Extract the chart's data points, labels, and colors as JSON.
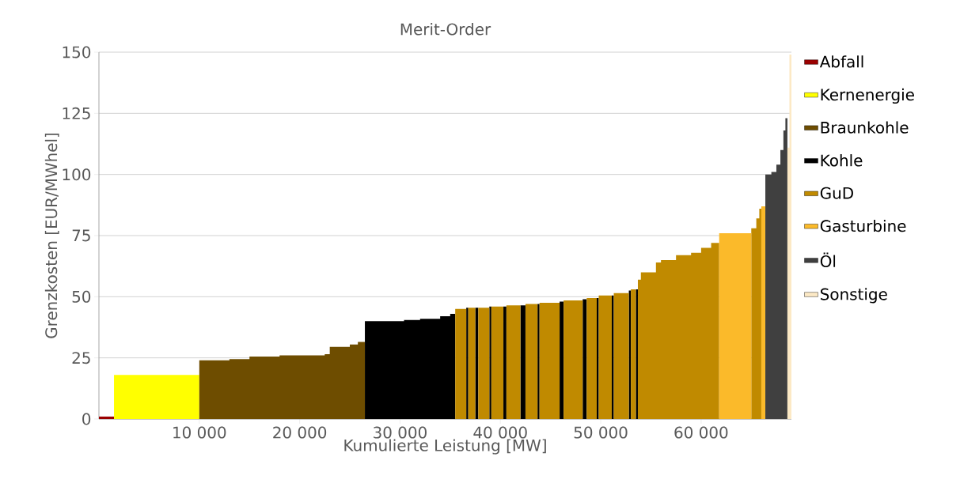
{
  "chart_data": {
    "type": "area",
    "title": "Merit-Order",
    "xlabel": "Kumulierte Leistung [MW]",
    "ylabel": "Grenzkosten [EUR/MWhel]",
    "xlim": [
      0,
      69000
    ],
    "ylim": [
      0,
      150
    ],
    "xticks": [
      {
        "value": 10000,
        "label": "10 000"
      },
      {
        "value": 20000,
        "label": "20 000"
      },
      {
        "value": 30000,
        "label": "30 000"
      },
      {
        "value": 40000,
        "label": "40 000"
      },
      {
        "value": 50000,
        "label": "50 000"
      },
      {
        "value": 60000,
        "label": "60 000"
      }
    ],
    "yticks": [
      0,
      25,
      50,
      75,
      100,
      125,
      150
    ],
    "grid": "y",
    "legend": "right",
    "series": [
      {
        "name": "Abfall",
        "color": "#9b0000",
        "x": [
          0,
          1500
        ],
        "values": [
          1,
          1
        ]
      },
      {
        "name": "Kernenergie",
        "color": "#ffff00",
        "x": [
          1500,
          10000
        ],
        "values": [
          18,
          18
        ]
      },
      {
        "name": "Braunkohle",
        "color": "#6e4d00",
        "x": [
          10000,
          13000,
          13000,
          15000,
          15000,
          18000,
          18000,
          22500,
          22500,
          23000,
          23000,
          25000,
          25000,
          25800,
          25800,
          26500
        ],
        "values": [
          24,
          24,
          24.5,
          24.5,
          25.5,
          25.5,
          26,
          26,
          26.5,
          26.5,
          29.5,
          29.5,
          30.5,
          30.5,
          31.5,
          31.5
        ]
      },
      {
        "name": "Kohle",
        "color": "#000000",
        "x": [
          26500,
          30400,
          30400,
          32000,
          32000,
          34000,
          34000,
          35000,
          35000,
          35500,
          null,
          36600,
          36800,
          null,
          37500,
          37800,
          null,
          38900,
          39100,
          null,
          40300,
          40600,
          null,
          42000,
          42500,
          null,
          43700,
          43900,
          null,
          45900,
          46300,
          null,
          48200,
          48600,
          null,
          49600,
          49800,
          null,
          51100,
          51300,
          null,
          52800,
          53000,
          null,
          53500,
          53700
        ],
        "values": [
          40,
          40,
          40.5,
          40.5,
          41,
          41,
          42,
          42,
          43,
          43,
          null,
          45.5,
          45.5,
          null,
          45.5,
          45.5,
          null,
          46,
          46,
          null,
          46,
          46,
          null,
          46.5,
          46.5,
          null,
          47,
          47,
          null,
          48,
          48,
          null,
          49,
          49,
          null,
          49.5,
          49.5,
          null,
          50.5,
          50.5,
          null,
          52.5,
          52.5,
          null,
          53,
          53
        ]
      },
      {
        "name": "GuD",
        "color": "#c08a00",
        "x": [
          35500,
          36600,
          null,
          36800,
          37500,
          null,
          37800,
          38900,
          null,
          39100,
          40300,
          null,
          40600,
          42000,
          null,
          42500,
          43700,
          null,
          43900,
          45900,
          null,
          46300,
          48200,
          null,
          48600,
          49600,
          null,
          49800,
          51100,
          null,
          51300,
          52800,
          null,
          53000,
          53500,
          null,
          53700,
          54000,
          54000,
          55500,
          55500,
          56000,
          56000,
          57500,
          57500,
          59000,
          59000,
          60000,
          60000,
          61000,
          61000,
          61800,
          null,
          65000,
          65500,
          65500,
          65800,
          65800,
          66000
        ],
        "values": [
          45,
          45,
          null,
          45.5,
          45.5,
          null,
          45.5,
          45.5,
          null,
          46,
          46,
          null,
          46.5,
          46.5,
          null,
          47,
          47,
          null,
          47.5,
          47.5,
          null,
          48.5,
          48.5,
          null,
          49.5,
          49.5,
          null,
          50.5,
          50.5,
          null,
          51.5,
          51.5,
          null,
          53,
          53,
          null,
          57,
          57,
          60,
          60,
          64,
          64,
          65,
          65,
          67,
          67,
          68,
          68,
          70,
          70,
          72,
          72,
          null,
          78,
          78,
          82,
          82,
          86,
          86
        ]
      },
      {
        "name": "Gasturbine",
        "color": "#fbba2a",
        "x": [
          61800,
          65000,
          null,
          66000,
          66400
        ],
        "values": [
          76,
          76,
          null,
          87,
          87
        ]
      },
      {
        "name": "Öl",
        "color": "#404040",
        "x": [
          66400,
          67000,
          67000,
          67500,
          67500,
          67900,
          67900,
          68200,
          68200,
          68400,
          68400,
          68600
        ],
        "values": [
          100,
          100,
          101,
          101,
          104,
          104,
          110,
          110,
          118,
          118,
          123,
          123
        ]
      },
      {
        "name": "Sonstige",
        "color": "#fce9c5",
        "x": [
          68600,
          68800,
          68800,
          69000
        ],
        "values": [
          111,
          111,
          149,
          149
        ]
      }
    ]
  }
}
